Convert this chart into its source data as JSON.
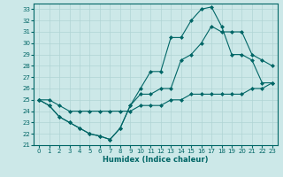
{
  "xlabel": "Humidex (Indice chaleur)",
  "xlim": [
    -0.5,
    23.5
  ],
  "ylim": [
    21,
    33.5
  ],
  "yticks": [
    21,
    22,
    23,
    24,
    25,
    26,
    27,
    28,
    29,
    30,
    31,
    32,
    33
  ],
  "xticks": [
    0,
    1,
    2,
    3,
    4,
    5,
    6,
    7,
    8,
    9,
    10,
    11,
    12,
    13,
    14,
    15,
    16,
    17,
    18,
    19,
    20,
    21,
    22,
    23
  ],
  "bg_color": "#cce8e8",
  "grid_color": "#b0d4d4",
  "line_color": "#006666",
  "curve1_x": [
    0,
    1,
    2,
    3,
    4,
    5,
    6,
    7,
    8,
    9,
    10,
    11,
    12,
    13,
    14,
    15,
    16,
    17,
    18,
    19,
    20,
    21,
    22,
    23
  ],
  "curve1_y": [
    25,
    24.5,
    23.5,
    23.0,
    22.5,
    22.0,
    21.8,
    21.5,
    22.5,
    24.5,
    26.0,
    27.5,
    27.5,
    30.5,
    30.5,
    32.0,
    33.0,
    33.2,
    31.5,
    29.0,
    29.0,
    28.5,
    26.5,
    26.5
  ],
  "curve2_x": [
    0,
    1,
    2,
    3,
    4,
    5,
    6,
    7,
    8,
    9,
    10,
    11,
    12,
    13,
    14,
    15,
    16,
    17,
    18,
    19,
    20,
    21,
    22,
    23
  ],
  "curve2_y": [
    25,
    24.5,
    23.5,
    23.0,
    22.5,
    22.0,
    21.8,
    21.5,
    22.5,
    24.5,
    25.5,
    25.5,
    26.0,
    26.0,
    28.5,
    29.0,
    30.0,
    31.5,
    31.0,
    31.0,
    31.0,
    29.0,
    28.5,
    28.0
  ],
  "curve3_x": [
    0,
    1,
    2,
    3,
    4,
    5,
    6,
    7,
    8,
    9,
    10,
    11,
    12,
    13,
    14,
    15,
    16,
    17,
    18,
    19,
    20,
    21,
    22,
    23
  ],
  "curve3_y": [
    25,
    25.0,
    24.5,
    24.0,
    24.0,
    24.0,
    24.0,
    24.0,
    24.0,
    24.0,
    24.5,
    24.5,
    24.5,
    25.0,
    25.0,
    25.5,
    25.5,
    25.5,
    25.5,
    25.5,
    25.5,
    26.0,
    26.0,
    26.5
  ]
}
